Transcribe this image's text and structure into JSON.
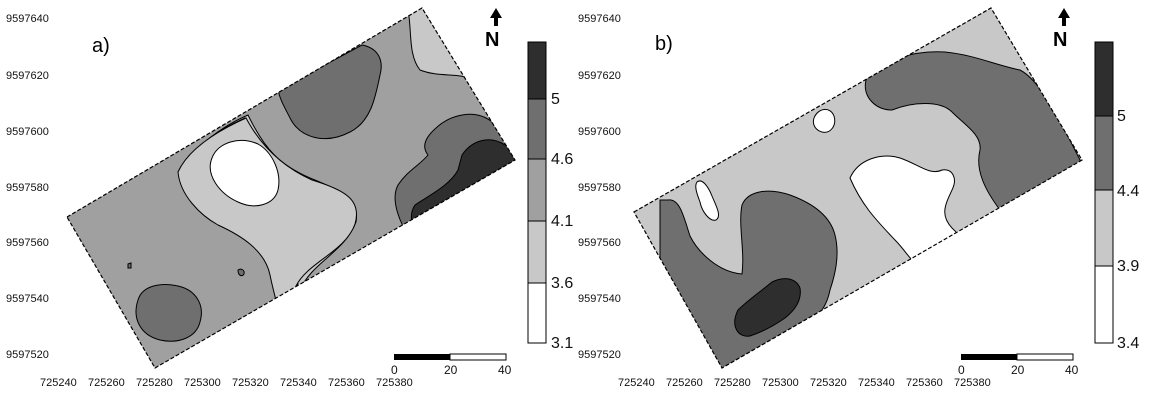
{
  "colors": {
    "c1": "#ffffff",
    "c2": "#c8c8c8",
    "c3": "#a0a0a0",
    "c4": "#6f6f6f",
    "c5": "#2e2e2e",
    "line": "#000000"
  },
  "north_icon": "north-arrow-icon",
  "north_label": "N",
  "panels": [
    {
      "label": "a)",
      "y_ticks": [
        "9597640",
        "9597620",
        "9597600",
        "9597580",
        "9597560",
        "9597540",
        "9597520"
      ],
      "x_ticks": [
        "725240",
        "725260",
        "725280",
        "725300",
        "725320",
        "725340",
        "725360",
        "725380"
      ],
      "legend": {
        "labels": [
          "5",
          "4.6",
          "4.1",
          "3.6",
          "3.1"
        ],
        "bands_low_to_high": [
          "#ffffff",
          "#c8c8c8",
          "#a0a0a0",
          "#6f6f6f",
          "#2e2e2e"
        ]
      },
      "scale_bar": {
        "labels": [
          "0",
          "20",
          "40"
        ]
      }
    },
    {
      "label": "b)",
      "y_ticks": [
        "9597640",
        "9597620",
        "9597600",
        "9597580",
        "9597560",
        "9597540",
        "9597520"
      ],
      "x_ticks": [
        "725240",
        "725260",
        "725280",
        "725300",
        "725320",
        "725340",
        "725360",
        "725380"
      ],
      "legend": {
        "labels": [
          "5",
          "4.4",
          "3.9",
          "3.4"
        ],
        "bands_low_to_high": [
          "#ffffff",
          "#c8c8c8",
          "#6f6f6f",
          "#2e2e2e"
        ]
      },
      "scale_bar": {
        "labels": [
          "0",
          "20",
          "40"
        ]
      }
    }
  ]
}
